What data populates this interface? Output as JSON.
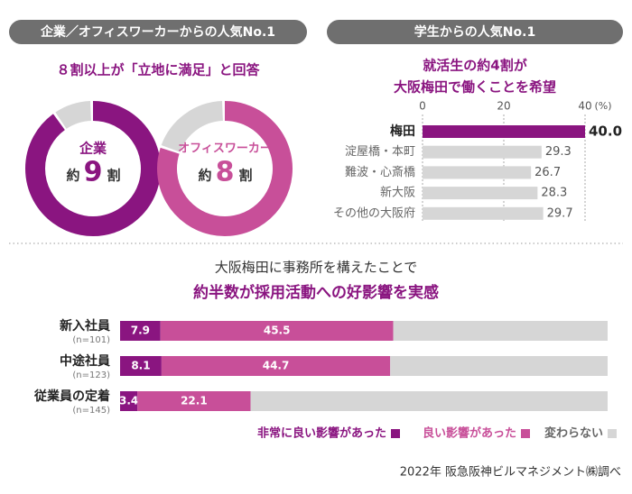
{
  "chart_data": [
    {
      "type": "donut",
      "header": "企業／オフィスワーカーからの人気No.1",
      "title": "８割以上が「立地に満足」と回答",
      "prefix": "約",
      "unit": "割",
      "track_color": "#d6d6d6",
      "items": [
        {
          "name": "企業",
          "value": 9,
          "color": "#8a1580"
        },
        {
          "name": "オフィスワーカー",
          "value": 8,
          "color": "#c84f99"
        }
      ]
    },
    {
      "type": "bar",
      "header": "学生からの人気No.1",
      "title": [
        "就活生の約4割が",
        "大阪梅田で働くことを希望"
      ],
      "categories": [
        "梅田",
        "淀屋橋・本町",
        "難波・心斎橋",
        "新大阪",
        "その他の大阪府"
      ],
      "values": [
        40.0,
        29.3,
        26.7,
        28.3,
        29.7
      ],
      "value_labels": [
        "40.0",
        "29.3",
        "26.7",
        "28.3",
        "29.7"
      ],
      "color": "#d6d6d6",
      "highlight": 0,
      "highlight_color": "#8a1580",
      "xlim": [
        0,
        40
      ],
      "xticks": [
        0,
        20,
        40
      ],
      "unit_label": "(%)",
      "grid": true
    },
    {
      "type": "stacked_bar",
      "title": [
        "大阪梅田に事務所を構えたことで",
        "約半数が採用活動への好影響を実感"
      ],
      "categories": [
        "新入社員",
        "中途社員",
        "従業員の定着"
      ],
      "notes": [
        "(n=101)",
        "(n=123)",
        "(n=145)"
      ],
      "series": [
        {
          "name": "非常に良い影響があった",
          "color": "#8a1580",
          "values": [
            7.9,
            8.1,
            3.4
          ],
          "labeled": true
        },
        {
          "name": "良い影響があった",
          "color": "#c84f99",
          "values": [
            45.5,
            44.7,
            22.1
          ],
          "labeled": true
        },
        {
          "name": "変わらない",
          "color": "#d6d6d6",
          "values": [
            41.9,
            42.5,
            69.8
          ],
          "labeled": false
        }
      ]
    }
  ],
  "source": "2022年 阪急阪神ビルマネジメント㈱調べ"
}
